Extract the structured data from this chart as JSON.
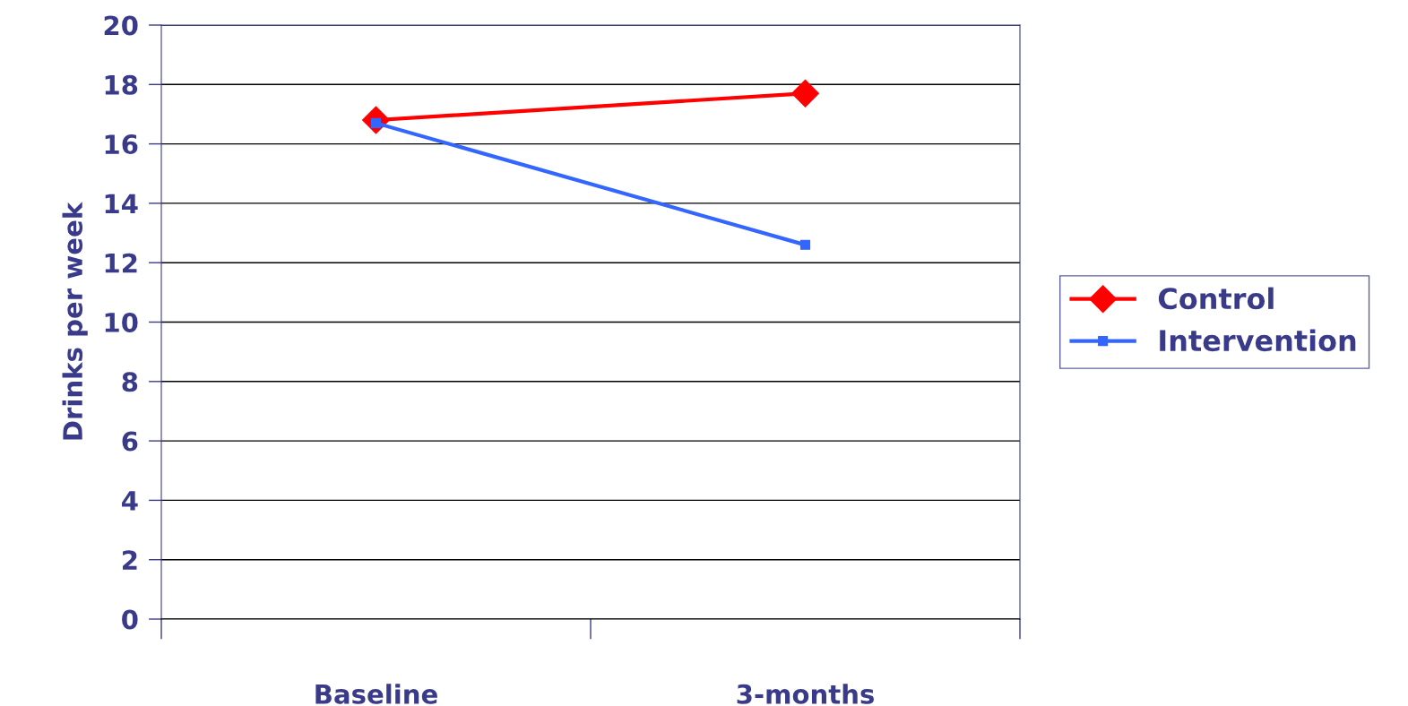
{
  "chart_data": {
    "type": "line",
    "ylabel": "Drinks per week",
    "categories": [
      "Baseline",
      "3-months"
    ],
    "series": [
      {
        "name": "Control",
        "color": "#ff0000",
        "values": [
          16.8,
          17.7
        ],
        "marker": "diamond"
      },
      {
        "name": "Intervention",
        "color": "#3366ff",
        "values": [
          16.7,
          12.6
        ],
        "marker": "square"
      }
    ],
    "ylim": [
      0,
      20
    ],
    "yticks": [
      0,
      2,
      4,
      6,
      8,
      10,
      12,
      14,
      16,
      18,
      20
    ],
    "grid": "y",
    "legend": "right",
    "line_style": "solid"
  }
}
